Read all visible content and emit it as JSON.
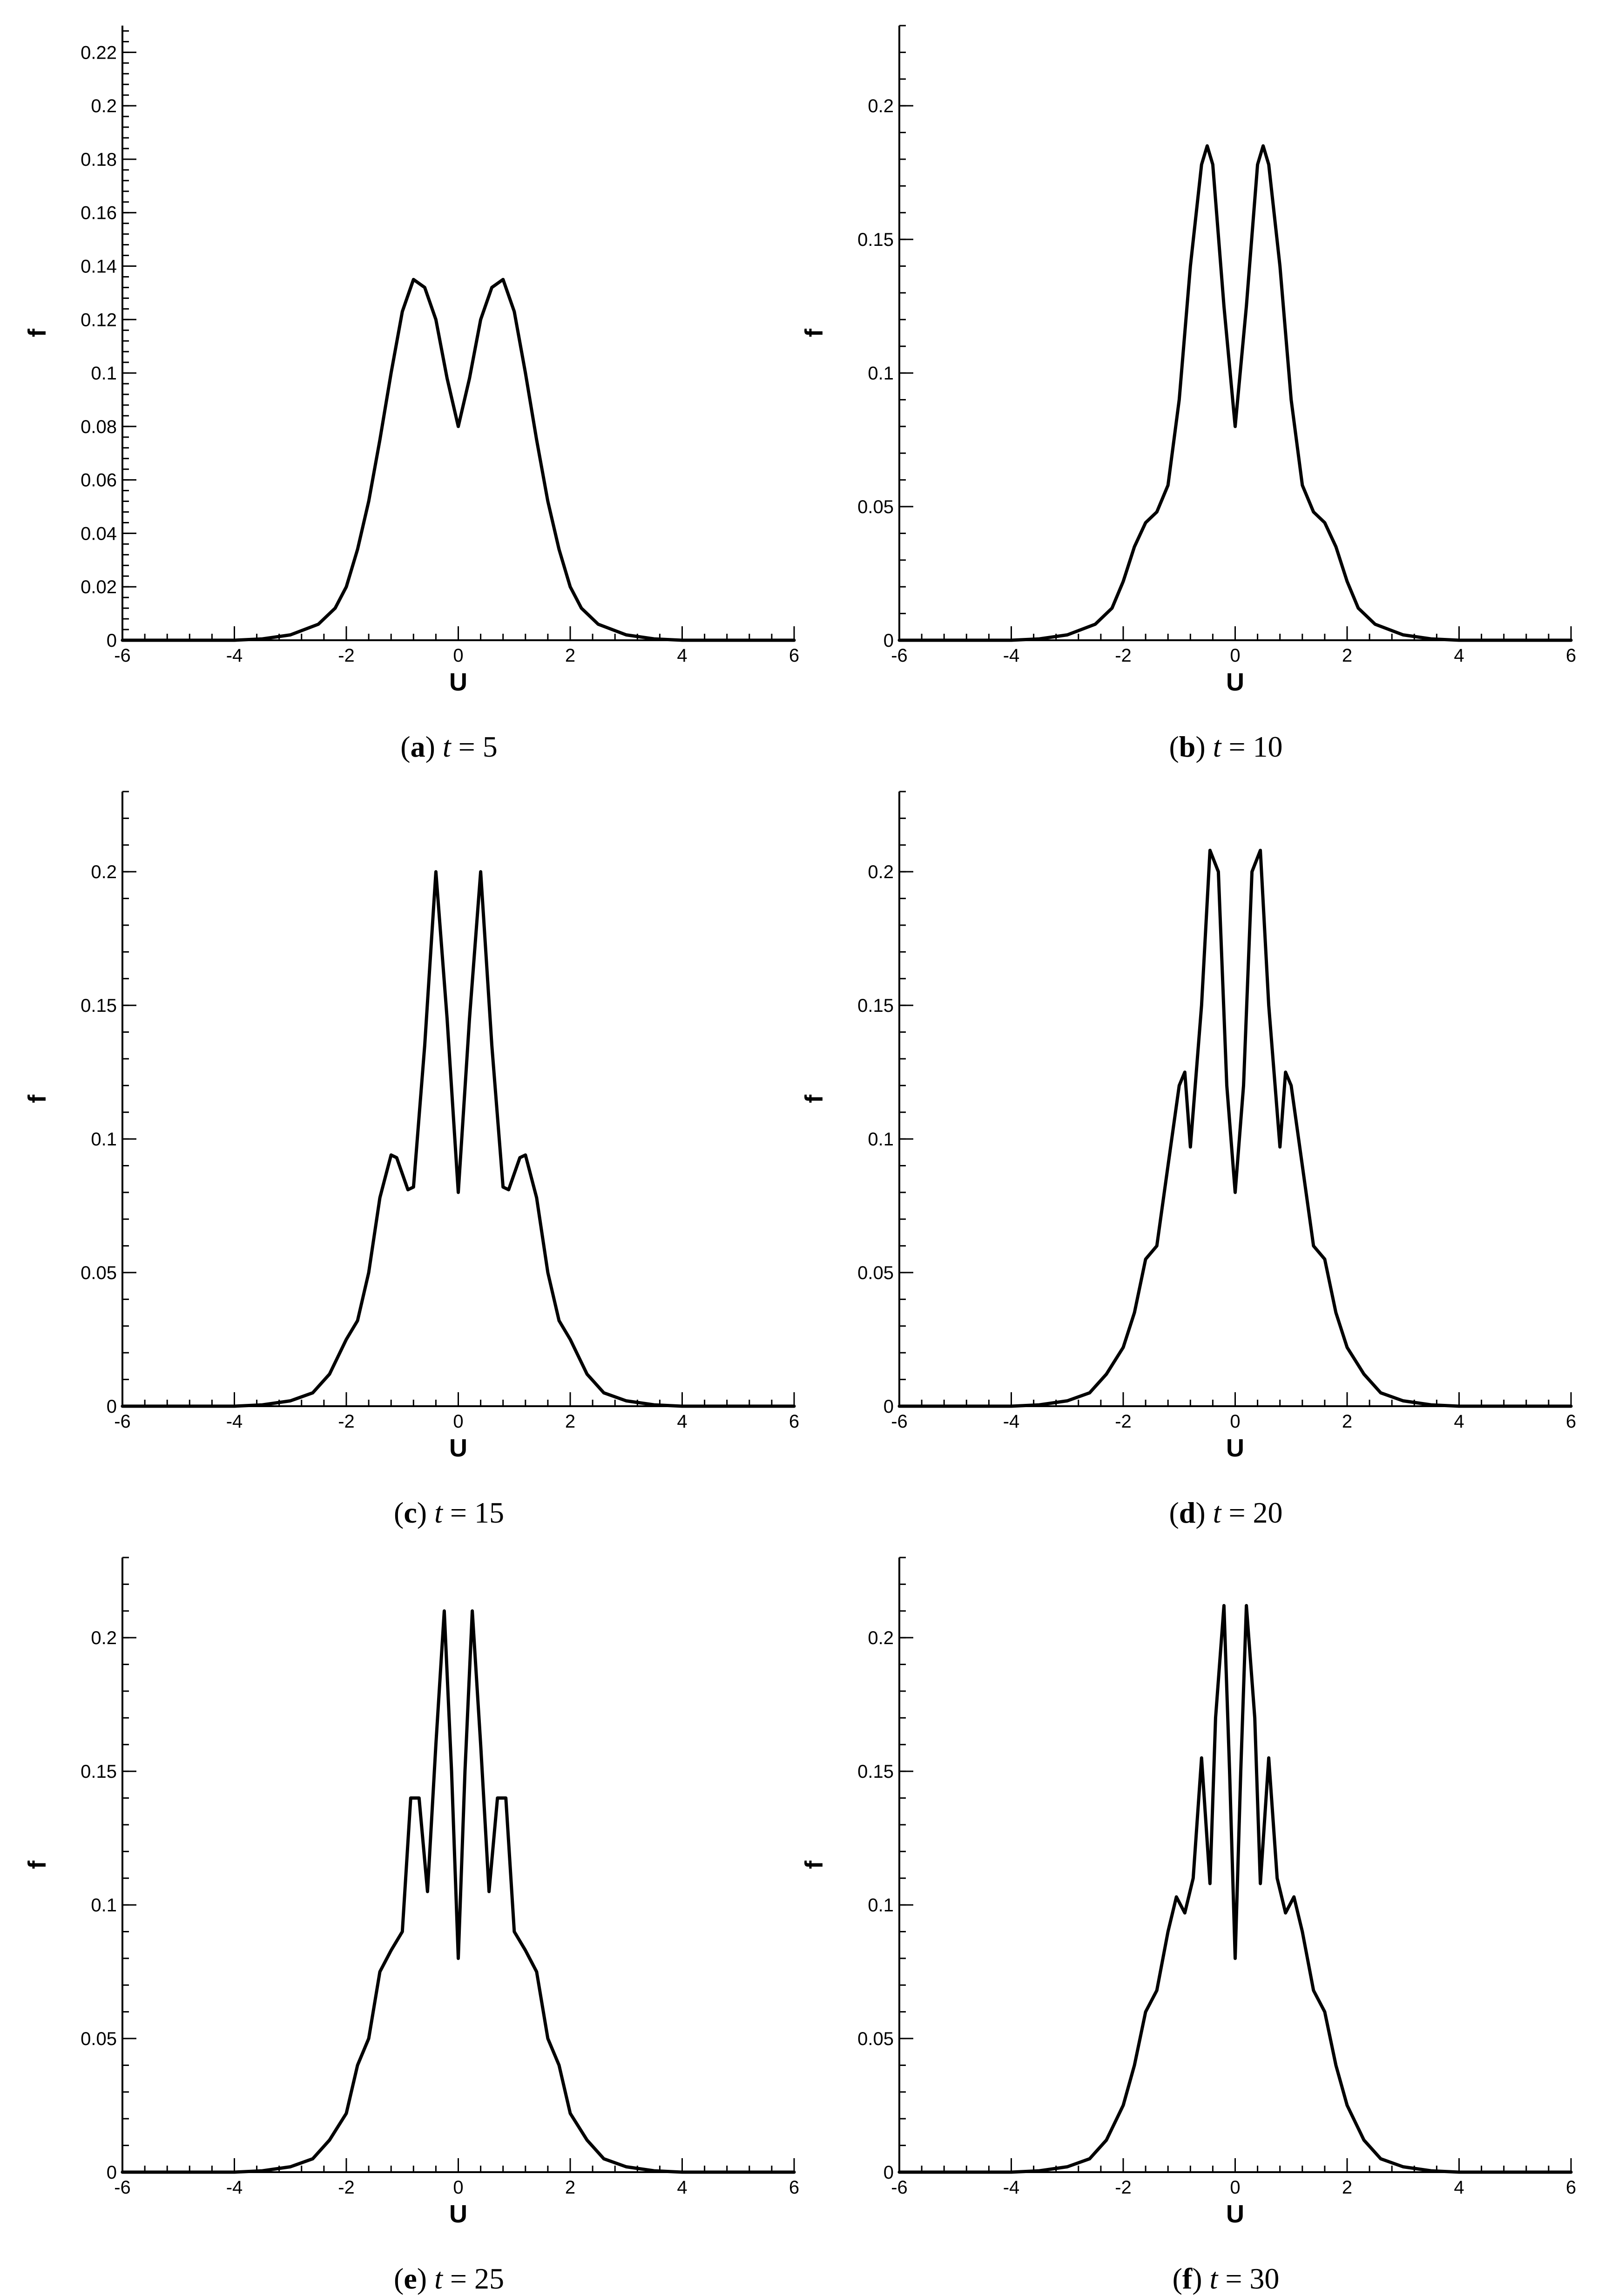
{
  "chart_data": [
    {
      "type": "line",
      "panel": "a",
      "caption": {
        "tag": "a",
        "param": "t",
        "value": "5"
      },
      "xlabel": "U",
      "ylabel": "f",
      "xlim": [
        -6,
        6
      ],
      "ylim": [
        0,
        0.23
      ],
      "xticks": [
        -6,
        -4,
        -2,
        0,
        2,
        4,
        6
      ],
      "xtick_labels": [
        "-6",
        "-4",
        "-2",
        "0",
        "2",
        "4",
        "6"
      ],
      "yticks": [
        0,
        0.02,
        0.04,
        0.06,
        0.08,
        0.1,
        0.12,
        0.14,
        0.16,
        0.18,
        0.2,
        0.22
      ],
      "ytick_labels": [
        "0",
        "0.02",
        "0.04",
        "0.06",
        "0.08",
        "0.1",
        "0.12",
        "0.14",
        "0.16",
        "0.18",
        "0.2",
        "0.22"
      ],
      "x": [
        -6,
        -4,
        -3.5,
        -3,
        -2.5,
        -2.2,
        -2,
        -1.8,
        -1.6,
        -1.4,
        -1.2,
        -1,
        -0.8,
        -0.6,
        -0.4,
        -0.2,
        0,
        0.2,
        0.4,
        0.6,
        0.8,
        1,
        1.2,
        1.4,
        1.6,
        1.8,
        2,
        2.2,
        2.5,
        3,
        3.5,
        4,
        6
      ],
      "y": [
        0,
        0,
        0.0005,
        0.002,
        0.006,
        0.012,
        0.02,
        0.034,
        0.052,
        0.075,
        0.1,
        0.123,
        0.135,
        0.132,
        0.12,
        0.098,
        0.08,
        0.098,
        0.12,
        0.132,
        0.135,
        0.123,
        0.1,
        0.075,
        0.052,
        0.034,
        0.02,
        0.012,
        0.006,
        0.002,
        0.0005,
        0,
        0
      ]
    },
    {
      "type": "line",
      "panel": "b",
      "caption": {
        "tag": "b",
        "param": "t",
        "value": "10"
      },
      "xlabel": "U",
      "ylabel": "f",
      "xlim": [
        -6,
        6
      ],
      "ylim": [
        0,
        0.23
      ],
      "xticks": [
        -6,
        -4,
        -2,
        0,
        2,
        4,
        6
      ],
      "xtick_labels": [
        "-6",
        "-4",
        "-2",
        "0",
        "2",
        "4",
        "6"
      ],
      "yticks": [
        0,
        0.05,
        0.1,
        0.15,
        0.2
      ],
      "ytick_labels": [
        "0",
        "0.05",
        "0.1",
        "0.15",
        "0.2"
      ],
      "x": [
        -6,
        -4,
        -3.5,
        -3,
        -2.5,
        -2.2,
        -2,
        -1.8,
        -1.6,
        -1.4,
        -1.2,
        -1,
        -0.8,
        -0.6,
        -0.5,
        -0.4,
        -0.2,
        0,
        0.2,
        0.4,
        0.5,
        0.6,
        0.8,
        1,
        1.2,
        1.4,
        1.6,
        1.8,
        2,
        2.2,
        2.5,
        3,
        3.5,
        4,
        6
      ],
      "y": [
        0,
        0,
        0.0005,
        0.002,
        0.006,
        0.012,
        0.022,
        0.035,
        0.044,
        0.048,
        0.058,
        0.09,
        0.14,
        0.178,
        0.185,
        0.178,
        0.125,
        0.08,
        0.125,
        0.178,
        0.185,
        0.178,
        0.14,
        0.09,
        0.058,
        0.048,
        0.044,
        0.035,
        0.022,
        0.012,
        0.006,
        0.002,
        0.0005,
        0,
        0
      ]
    },
    {
      "type": "line",
      "panel": "c",
      "caption": {
        "tag": "c",
        "param": "t",
        "value": "15"
      },
      "xlabel": "U",
      "ylabel": "f",
      "xlim": [
        -6,
        6
      ],
      "ylim": [
        0,
        0.23
      ],
      "xticks": [
        -6,
        -4,
        -2,
        0,
        2,
        4,
        6
      ],
      "xtick_labels": [
        "-6",
        "-4",
        "-2",
        "0",
        "2",
        "4",
        "6"
      ],
      "yticks": [
        0,
        0.05,
        0.1,
        0.15,
        0.2
      ],
      "ytick_labels": [
        "0",
        "0.05",
        "0.1",
        "0.15",
        "0.2"
      ],
      "x": [
        -6,
        -4,
        -3.5,
        -3,
        -2.6,
        -2.3,
        -2,
        -1.8,
        -1.6,
        -1.4,
        -1.2,
        -1.1,
        -0.9,
        -0.8,
        -0.6,
        -0.4,
        -0.2,
        0,
        0.2,
        0.4,
        0.6,
        0.8,
        0.9,
        1.1,
        1.2,
        1.4,
        1.6,
        1.8,
        2,
        2.3,
        2.6,
        3,
        3.5,
        4,
        6
      ],
      "y": [
        0,
        0,
        0.0005,
        0.002,
        0.005,
        0.012,
        0.025,
        0.032,
        0.05,
        0.078,
        0.094,
        0.093,
        0.081,
        0.082,
        0.135,
        0.2,
        0.145,
        0.08,
        0.145,
        0.2,
        0.135,
        0.082,
        0.081,
        0.093,
        0.094,
        0.078,
        0.05,
        0.032,
        0.025,
        0.012,
        0.005,
        0.002,
        0.0005,
        0,
        0
      ]
    },
    {
      "type": "line",
      "panel": "d",
      "caption": {
        "tag": "d",
        "param": "t",
        "value": "20"
      },
      "xlabel": "U",
      "ylabel": "f",
      "xlim": [
        -6,
        6
      ],
      "ylim": [
        0,
        0.23
      ],
      "xticks": [
        -6,
        -4,
        -2,
        0,
        2,
        4,
        6
      ],
      "xtick_labels": [
        "-6",
        "-4",
        "-2",
        "0",
        "2",
        "4",
        "6"
      ],
      "yticks": [
        0,
        0.05,
        0.1,
        0.15,
        0.2
      ],
      "ytick_labels": [
        "0",
        "0.05",
        "0.1",
        "0.15",
        "0.2"
      ],
      "x": [
        -6,
        -4,
        -3.5,
        -3,
        -2.6,
        -2.3,
        -2,
        -1.8,
        -1.6,
        -1.4,
        -1.2,
        -1,
        -0.9,
        -0.8,
        -0.6,
        -0.45,
        -0.3,
        -0.15,
        0,
        0.15,
        0.3,
        0.45,
        0.6,
        0.8,
        0.9,
        1,
        1.2,
        1.4,
        1.6,
        1.8,
        2,
        2.3,
        2.6,
        3,
        3.5,
        4,
        6
      ],
      "y": [
        0,
        0,
        0.0005,
        0.002,
        0.005,
        0.012,
        0.022,
        0.035,
        0.055,
        0.06,
        0.09,
        0.12,
        0.125,
        0.097,
        0.15,
        0.208,
        0.2,
        0.12,
        0.08,
        0.12,
        0.2,
        0.208,
        0.15,
        0.097,
        0.125,
        0.12,
        0.09,
        0.06,
        0.055,
        0.035,
        0.022,
        0.012,
        0.005,
        0.002,
        0.0005,
        0,
        0
      ]
    },
    {
      "type": "line",
      "panel": "e",
      "caption": {
        "tag": "e",
        "param": "t",
        "value": "25"
      },
      "xlabel": "U",
      "ylabel": "f",
      "xlim": [
        -6,
        6
      ],
      "ylim": [
        0,
        0.23
      ],
      "xticks": [
        -6,
        -4,
        -2,
        0,
        2,
        4,
        6
      ],
      "xtick_labels": [
        "-6",
        "-4",
        "-2",
        "0",
        "2",
        "4",
        "6"
      ],
      "yticks": [
        0,
        0.05,
        0.1,
        0.15,
        0.2
      ],
      "ytick_labels": [
        "0",
        "0.05",
        "0.1",
        "0.15",
        "0.2"
      ],
      "x": [
        -6,
        -4,
        -3.5,
        -3,
        -2.6,
        -2.3,
        -2,
        -1.8,
        -1.6,
        -1.4,
        -1.2,
        -1,
        -0.85,
        -0.7,
        -0.55,
        -0.4,
        -0.25,
        -0.12,
        0,
        0.12,
        0.25,
        0.4,
        0.55,
        0.7,
        0.85,
        1,
        1.2,
        1.4,
        1.6,
        1.8,
        2,
        2.3,
        2.6,
        3,
        3.5,
        4,
        6
      ],
      "y": [
        0,
        0,
        0.0005,
        0.002,
        0.005,
        0.012,
        0.022,
        0.04,
        0.05,
        0.075,
        0.083,
        0.09,
        0.14,
        0.14,
        0.105,
        0.16,
        0.21,
        0.15,
        0.08,
        0.15,
        0.21,
        0.16,
        0.105,
        0.14,
        0.14,
        0.09,
        0.083,
        0.075,
        0.05,
        0.04,
        0.022,
        0.012,
        0.005,
        0.002,
        0.0005,
        0,
        0
      ]
    },
    {
      "type": "line",
      "panel": "f",
      "caption": {
        "tag": "f",
        "param": "t",
        "value": "30"
      },
      "xlabel": "U",
      "ylabel": "f",
      "xlim": [
        -6,
        6
      ],
      "ylim": [
        0,
        0.23
      ],
      "xticks": [
        -6,
        -4,
        -2,
        0,
        2,
        4,
        6
      ],
      "xtick_labels": [
        "-6",
        "-4",
        "-2",
        "0",
        "2",
        "4",
        "6"
      ],
      "yticks": [
        0,
        0.05,
        0.1,
        0.15,
        0.2
      ],
      "ytick_labels": [
        "0",
        "0.05",
        "0.1",
        "0.15",
        "0.2"
      ],
      "x": [
        -6,
        -4,
        -3.5,
        -3,
        -2.6,
        -2.3,
        -2,
        -1.8,
        -1.6,
        -1.4,
        -1.2,
        -1.05,
        -0.9,
        -0.75,
        -0.6,
        -0.45,
        -0.35,
        -0.2,
        -0.1,
        0,
        0.1,
        0.2,
        0.35,
        0.45,
        0.6,
        0.75,
        0.9,
        1.05,
        1.2,
        1.4,
        1.6,
        1.8,
        2,
        2.3,
        2.6,
        3,
        3.5,
        4,
        6
      ],
      "y": [
        0,
        0,
        0.0005,
        0.002,
        0.005,
        0.012,
        0.025,
        0.04,
        0.06,
        0.068,
        0.09,
        0.103,
        0.097,
        0.11,
        0.155,
        0.108,
        0.17,
        0.212,
        0.15,
        0.08,
        0.15,
        0.212,
        0.17,
        0.108,
        0.155,
        0.11,
        0.097,
        0.103,
        0.09,
        0.068,
        0.06,
        0.04,
        0.025,
        0.012,
        0.005,
        0.002,
        0.0005,
        0,
        0
      ]
    }
  ]
}
